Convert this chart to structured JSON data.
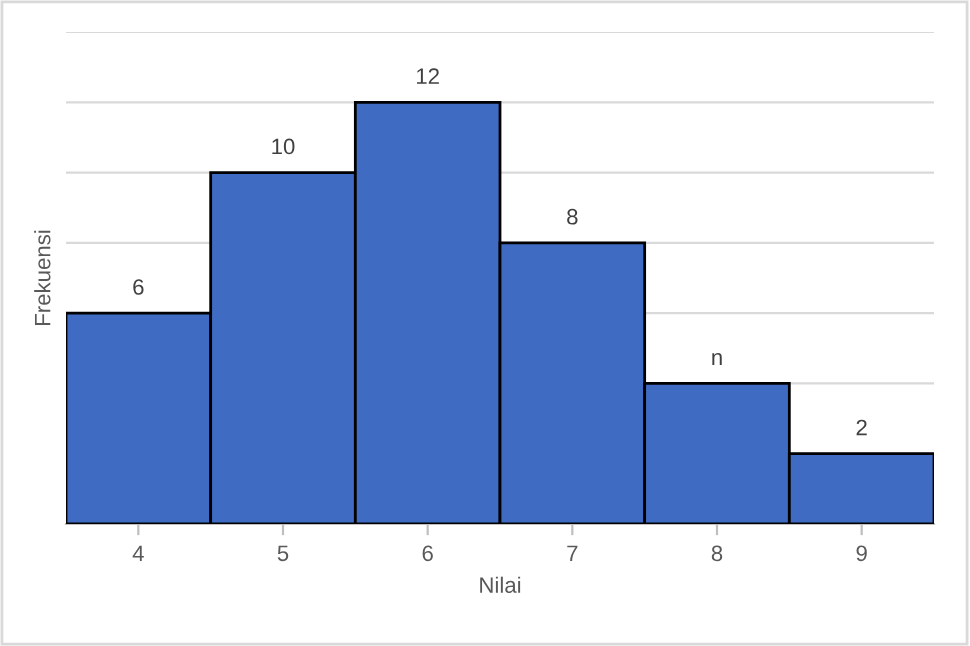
{
  "chart_data": {
    "type": "bar",
    "xlabel": "Nilai",
    "ylabel": "Frekuensi",
    "categories": [
      "4",
      "5",
      "6",
      "7",
      "8",
      "9"
    ],
    "values": [
      6,
      10,
      12,
      8,
      4,
      2
    ],
    "value_labels": [
      "6",
      "10",
      "12",
      "8",
      "n",
      "2"
    ],
    "color": "#3f6bc3",
    "ylim": [
      0,
      14
    ],
    "tick_labels": "x",
    "grid": "y"
  }
}
